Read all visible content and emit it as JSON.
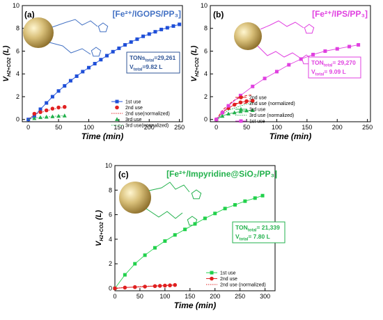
{
  "chart_data": [
    {
      "type": "line",
      "panel": "(a)",
      "title": "[Fe²⁺/IGOPS/PP₃]",
      "title_color": "#4472C4",
      "xlabel": "Time (min)",
      "ylabel": "V",
      "ylabel_sub": "H2+CO2",
      "ylabel_unit": " (L)",
      "xlim": [
        -10,
        255
      ],
      "ylim": [
        -0.2,
        10
      ],
      "xticks": [
        "0",
        "50",
        "100",
        "150",
        "200",
        "250"
      ],
      "yticks": [
        "0",
        "2",
        "4",
        "6",
        "8",
        "10"
      ],
      "xtick_vals": [
        0,
        50,
        100,
        150,
        200,
        250
      ],
      "ytick_vals": [
        0,
        2,
        4,
        6,
        8,
        10
      ],
      "annotation": {
        "l1_a": "TONs",
        "l1_b": "total",
        "l1_c": "=29,261",
        "l2_a": "V",
        "l2_b": "total",
        "l2_c": "=9.82 L",
        "color": "#2F5597"
      },
      "series": [
        {
          "name": "1st use",
          "color": "#1F4FD8",
          "style": "line-marker",
          "marker": "square",
          "x": [
            0,
            10,
            20,
            30,
            40,
            50,
            60,
            70,
            80,
            90,
            100,
            110,
            120,
            130,
            140,
            150,
            160,
            170,
            180,
            190,
            200,
            210,
            220,
            230,
            240,
            250
          ],
          "y": [
            0,
            0.3,
            0.9,
            1.45,
            2.0,
            2.5,
            2.95,
            3.4,
            3.8,
            4.2,
            4.55,
            4.9,
            5.25,
            5.6,
            5.95,
            6.25,
            6.55,
            6.8,
            7.05,
            7.3,
            7.5,
            7.7,
            7.9,
            8.05,
            8.2,
            8.35
          ]
        },
        {
          "name": "2nd use",
          "color": "#E02020",
          "style": "markers",
          "marker": "circle",
          "x": [
            10,
            20,
            30,
            40,
            50,
            60
          ],
          "y": [
            0.5,
            0.65,
            0.8,
            0.95,
            1.05,
            1.1
          ]
        },
        {
          "name": "2nd use(normalized)",
          "color": "#E02020",
          "style": "dotted",
          "x": [
            0,
            10,
            20,
            30,
            40,
            50,
            60
          ],
          "y": [
            0,
            0.45,
            0.6,
            0.75,
            0.9,
            1.0,
            1.05
          ]
        },
        {
          "name": "3rd use",
          "color": "#22B14C",
          "style": "markers",
          "marker": "triangle",
          "x": [
            10,
            20,
            30,
            40,
            50,
            60
          ],
          "y": [
            0.1,
            0.18,
            0.22,
            0.26,
            0.3,
            0.33
          ]
        },
        {
          "name": "3rd use(normalized)",
          "color": "#22B14C",
          "style": "dotted",
          "x": [
            0,
            10,
            20,
            30,
            40,
            50,
            60
          ],
          "y": [
            0,
            0.12,
            0.18,
            0.22,
            0.26,
            0.3,
            0.33
          ]
        }
      ]
    },
    {
      "type": "line",
      "panel": "(b)",
      "title": "[Fe²⁺/IPS/PP₃]",
      "title_color": "#E040E0",
      "xlabel": "Time (min)",
      "ylabel": "V",
      "ylabel_sub": "H2+CO2",
      "ylabel_unit": " (L)",
      "xlim": [
        -10,
        255
      ],
      "ylim": [
        -0.2,
        10
      ],
      "xticks": [
        "0",
        "50",
        "100",
        "150",
        "200",
        "250"
      ],
      "yticks": [
        "0",
        "2",
        "4",
        "6",
        "8",
        "10"
      ],
      "xtick_vals": [
        0,
        50,
        100,
        150,
        200,
        250
      ],
      "ytick_vals": [
        0,
        2,
        4,
        6,
        8,
        10
      ],
      "annotation": {
        "l1_a": "TON",
        "l1_b": "total",
        "l1_c": "= 29,270",
        "l2_a": "V",
        "l2_b": "total",
        "l2_c": "= 9.09 L",
        "color": "#E040E0"
      },
      "series": [
        {
          "name": "2nd use",
          "color": "#E02020",
          "style": "line-marker",
          "marker": "circle",
          "x": [
            0,
            10,
            20,
            30,
            40,
            50,
            60
          ],
          "y": [
            0,
            0.6,
            1.0,
            1.3,
            1.5,
            1.6,
            1.65
          ]
        },
        {
          "name": "2nd use (normalized)",
          "color": "#E02020",
          "style": "dashed",
          "x": [
            0,
            10,
            20,
            30,
            40,
            50,
            60
          ],
          "y": [
            0,
            0.8,
            1.3,
            1.7,
            1.95,
            2.1,
            2.15
          ]
        },
        {
          "name": "3rd use",
          "color": "#22B14C",
          "style": "line-marker",
          "marker": "triangle",
          "x": [
            0,
            10,
            20,
            30,
            40,
            50,
            60
          ],
          "y": [
            0,
            0.3,
            0.5,
            0.6,
            0.7,
            0.78,
            0.8
          ]
        },
        {
          "name": "3rd use (normalized)",
          "color": "#22B14C",
          "style": "dotted",
          "x": [
            0,
            10,
            20,
            30,
            40,
            50,
            60
          ],
          "y": [
            0,
            0.45,
            0.8,
            1.0,
            1.2,
            1.35,
            1.45
          ]
        },
        {
          "name": "1st use",
          "color": "#E040E0",
          "style": "line-marker",
          "marker": "square",
          "x": [
            0,
            10,
            20,
            40,
            60,
            80,
            100,
            120,
            140,
            160,
            180,
            200,
            220,
            235
          ],
          "y": [
            0,
            0.6,
            1.2,
            2.1,
            2.9,
            3.6,
            4.2,
            4.8,
            5.3,
            5.7,
            6.0,
            6.2,
            6.4,
            6.55
          ]
        }
      ]
    },
    {
      "type": "line",
      "panel": "(c)",
      "title": "[Fe²⁺/Impyridine@SiO₂/PP₃]",
      "title_color": "#22B14C",
      "xlabel": "Time (min)",
      "ylabel": "V",
      "ylabel_sub": "H2+CO2",
      "ylabel_unit": " (L)",
      "xlim": [
        0,
        320
      ],
      "ylim": [
        -0.2,
        10
      ],
      "xticks": [
        "0",
        "50",
        "100",
        "150",
        "200",
        "250",
        "300"
      ],
      "yticks": [
        "0",
        "2",
        "4",
        "6",
        "8",
        "10"
      ],
      "xtick_vals": [
        0,
        50,
        100,
        150,
        200,
        250,
        300
      ],
      "ytick_vals": [
        0,
        2,
        4,
        6,
        8,
        10
      ],
      "annotation": {
        "l1_a": "TON",
        "l1_b": "total",
        "l1_c": "= 21,339",
        "l2_a": "V",
        "l2_b": "total",
        "l2_c": "= 7.80 L",
        "color": "#22B14C"
      },
      "series": [
        {
          "name": "1st use",
          "color": "#22D14C",
          "style": "line-marker",
          "marker": "square",
          "x": [
            0,
            20,
            40,
            60,
            80,
            100,
            120,
            140,
            160,
            180,
            200,
            220,
            240,
            260,
            280,
            295
          ],
          "y": [
            0,
            1.1,
            2.0,
            2.7,
            3.3,
            3.85,
            4.35,
            4.8,
            5.25,
            5.7,
            6.1,
            6.5,
            6.8,
            7.1,
            7.35,
            7.55
          ]
        },
        {
          "name": "2nd use",
          "color": "#E02020",
          "style": "line-marker",
          "marker": "circle",
          "x": [
            0,
            20,
            40,
            60,
            80,
            90,
            100,
            110,
            120
          ],
          "y": [
            0,
            0.06,
            0.1,
            0.14,
            0.18,
            0.2,
            0.22,
            0.24,
            0.27
          ]
        },
        {
          "name": "2nd use (normalized)",
          "color": "#E02020",
          "style": "dotted",
          "x": [
            0,
            20,
            40,
            60,
            80,
            100,
            120
          ],
          "y": [
            0,
            0.08,
            0.12,
            0.16,
            0.2,
            0.24,
            0.28
          ]
        }
      ]
    }
  ]
}
